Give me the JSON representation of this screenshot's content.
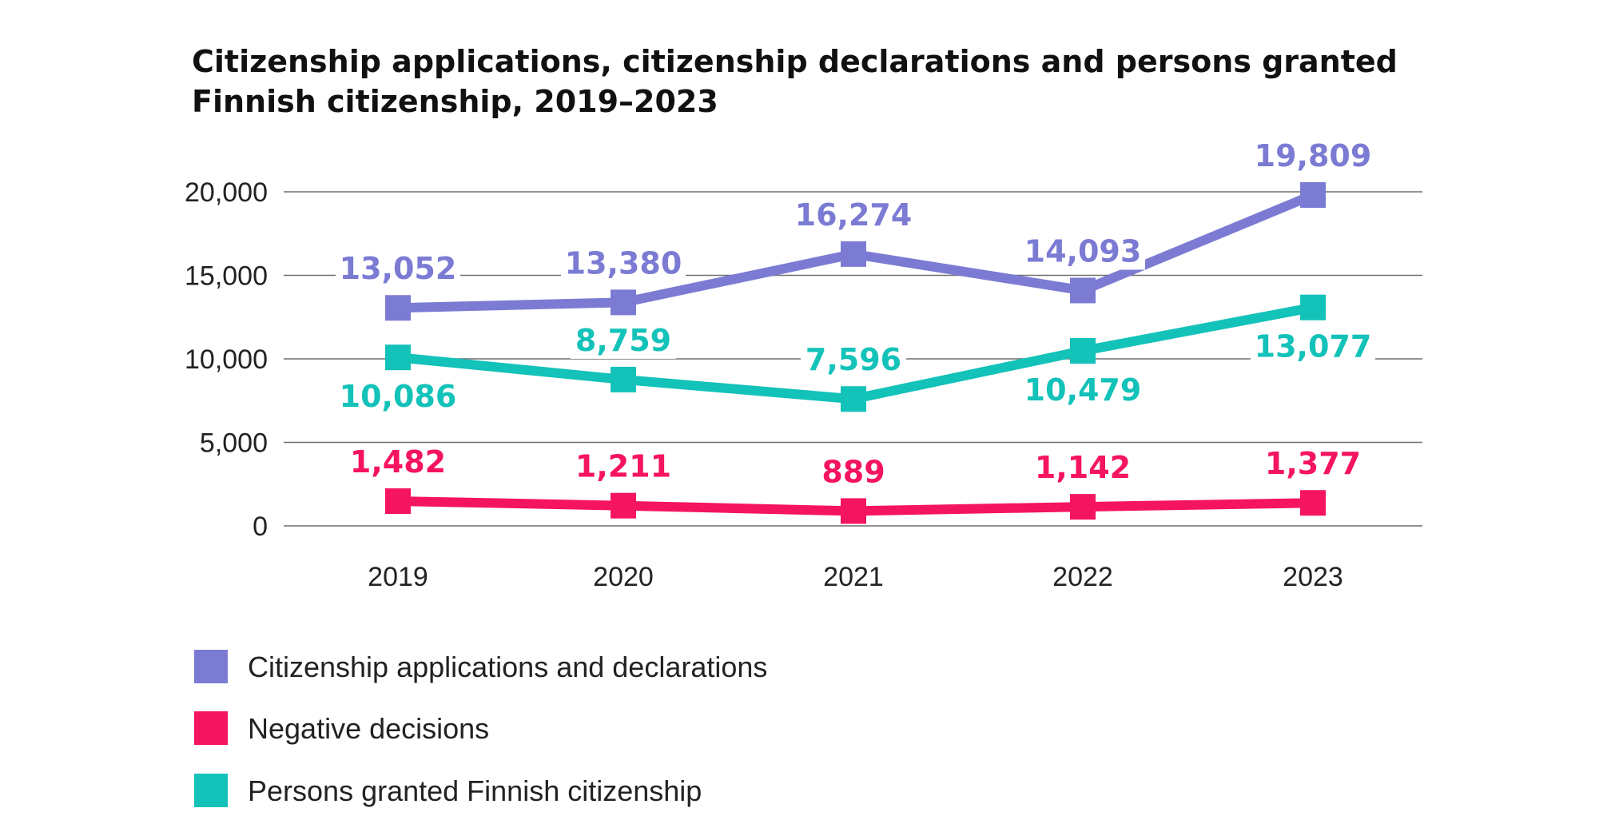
{
  "chart_data": {
    "type": "line",
    "title_line1": "Citizenship applications, citizenship declarations and persons granted",
    "title_line2": "Finnish citizenship, 2019–2023",
    "categories": [
      "2019",
      "2020",
      "2021",
      "2022",
      "2023"
    ],
    "ylim": [
      0,
      20000
    ],
    "yticks": [
      0,
      5000,
      10000,
      15000,
      20000
    ],
    "ytick_labels": [
      "0",
      "5,000",
      "10,000",
      "15,000",
      "20,000"
    ],
    "grid": true,
    "legend_position": "bottom-left",
    "series": [
      {
        "name": "Citizenship applications and declarations",
        "color": "#7b7bd4",
        "values": [
          13052,
          13380,
          16274,
          14093,
          19809
        ],
        "labels": [
          "13,052",
          "13,380",
          "16,274",
          "14,093",
          "19,809"
        ]
      },
      {
        "name": "Negative decisions",
        "color": "#f5145f",
        "values": [
          1482,
          1211,
          889,
          1142,
          1377
        ],
        "labels": [
          "1,482",
          "1,211",
          "889",
          "1,142",
          "1,377"
        ]
      },
      {
        "name": "Persons granted Finnish citizenship",
        "color": "#13c2b8",
        "values": [
          10086,
          8759,
          7596,
          10479,
          13077
        ],
        "labels": [
          "10,086",
          "8,759",
          "7,596",
          "10,479",
          "13,077"
        ]
      }
    ]
  }
}
